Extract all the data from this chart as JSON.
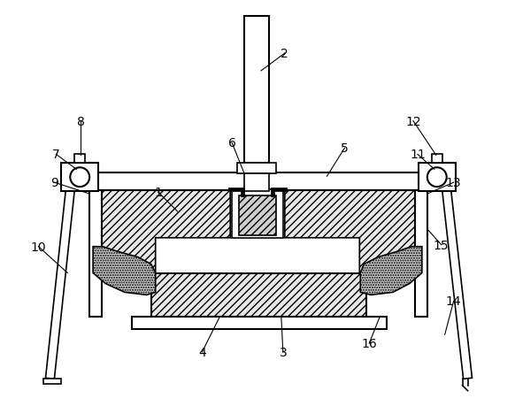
{
  "bg_color": "#ffffff",
  "line_color": "#000000",
  "figsize": [
    5.82,
    4.6
  ],
  "dpi": 100,
  "label_fontsize": 10
}
